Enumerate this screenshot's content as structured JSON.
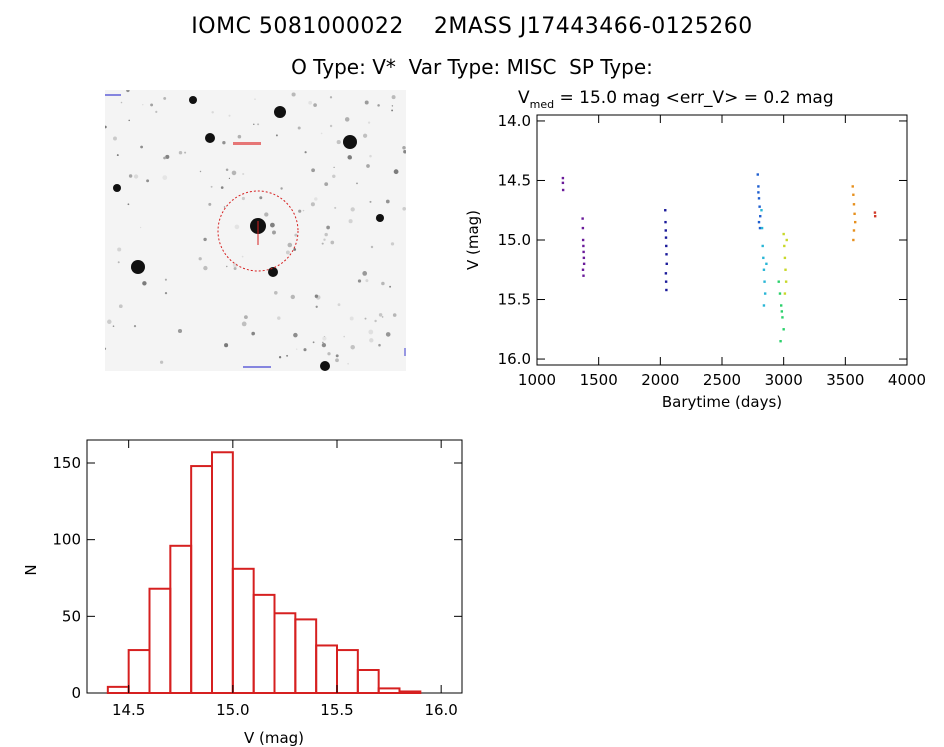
{
  "header": {
    "line1": "IOMC 5081000022    2MASS J17443466-0125260",
    "line2": "O Type: V*  Var Type: MISC  SP Type:"
  },
  "finder_chart": {
    "marker_color": "#d62020"
  },
  "chart_data": [
    {
      "type": "scatter",
      "title": "V_med = 15.0 mag <err_V> = 0.2 mag",
      "title_main": "V",
      "title_sub": "med",
      "title_rest": " = 15.0 mag <err_V> = 0.2 mag",
      "xlabel": "Barytime (days)",
      "ylabel": "V (mag)",
      "xlim": [
        1000,
        4000
      ],
      "ylim": [
        16.05,
        13.95
      ],
      "y_inverted": true,
      "xticks": [
        "1000",
        "1500",
        "2000",
        "2500",
        "3000",
        "3500",
        "4000"
      ],
      "yticks": [
        "14.0",
        "14.5",
        "15.0",
        "15.5",
        "16.0"
      ],
      "series": [
        {
          "color": "#6a1b9a",
          "x": [
            1210,
            1210,
            1212
          ],
          "y": [
            14.48,
            14.52,
            14.58
          ]
        },
        {
          "color": "#6a1b9a",
          "x": [
            1370,
            1372,
            1374,
            1376,
            1378,
            1380,
            1382,
            1373,
            1377
          ],
          "y": [
            14.82,
            14.9,
            15.0,
            15.05,
            15.1,
            15.15,
            15.2,
            15.25,
            15.3
          ]
        },
        {
          "color": "#1a1a9a",
          "x": [
            2040,
            2042,
            2044,
            2046,
            2048,
            2050,
            2052,
            2045,
            2047,
            2049
          ],
          "y": [
            14.75,
            14.85,
            14.92,
            14.98,
            15.05,
            15.12,
            15.2,
            15.28,
            15.35,
            15.42
          ]
        },
        {
          "color": "#1f5fd0",
          "x": [
            2790,
            2795,
            2800,
            2805,
            2810,
            2800,
            2795,
            2808
          ],
          "y": [
            14.45,
            14.55,
            14.65,
            14.72,
            14.8,
            14.85,
            14.6,
            14.9
          ]
        },
        {
          "color": "#29b6d6",
          "x": [
            2820,
            2825,
            2830,
            2835,
            2840,
            2845,
            2850,
            2840,
            2860
          ],
          "y": [
            14.75,
            14.9,
            15.05,
            15.15,
            15.25,
            15.35,
            15.45,
            15.55,
            15.2
          ]
        },
        {
          "color": "#2bd06b",
          "x": [
            2960,
            2970,
            2980,
            2990,
            3000,
            2975,
            2985
          ],
          "y": [
            15.35,
            15.45,
            15.55,
            15.65,
            15.75,
            15.85,
            15.6
          ]
        },
        {
          "color": "#c8d82a",
          "x": [
            3000,
            3005,
            3010,
            3015,
            3020,
            3010,
            3025
          ],
          "y": [
            14.95,
            15.05,
            15.15,
            15.25,
            15.35,
            15.45,
            15.0
          ]
        },
        {
          "color": "#e6901e",
          "x": [
            3560,
            3565,
            3570,
            3575,
            3580,
            3570,
            3565
          ],
          "y": [
            14.55,
            14.62,
            14.7,
            14.78,
            14.85,
            14.92,
            15.0
          ]
        },
        {
          "color": "#d13b2a",
          "x": [
            3740,
            3742
          ],
          "y": [
            14.77,
            14.8
          ]
        }
      ]
    },
    {
      "type": "bar",
      "xlabel": "V (mag)",
      "ylabel": "N",
      "xlim": [
        14.3,
        16.1
      ],
      "ylim": [
        0,
        165
      ],
      "xticks": [
        "14.5",
        "15.0",
        "15.5",
        "16.0"
      ],
      "yticks": [
        "0",
        "50",
        "100",
        "150"
      ],
      "bar_color": "#d62020",
      "bin_width": 0.1,
      "bins": [
        {
          "x": 14.4,
          "n": 4
        },
        {
          "x": 14.5,
          "n": 28
        },
        {
          "x": 14.6,
          "n": 68
        },
        {
          "x": 14.7,
          "n": 96
        },
        {
          "x": 14.8,
          "n": 148
        },
        {
          "x": 14.9,
          "n": 157
        },
        {
          "x": 15.0,
          "n": 81
        },
        {
          "x": 15.1,
          "n": 64
        },
        {
          "x": 15.2,
          "n": 52
        },
        {
          "x": 15.3,
          "n": 48
        },
        {
          "x": 15.4,
          "n": 31
        },
        {
          "x": 15.5,
          "n": 28
        },
        {
          "x": 15.6,
          "n": 15
        },
        {
          "x": 15.7,
          "n": 3
        },
        {
          "x": 15.8,
          "n": 1
        }
      ]
    }
  ]
}
